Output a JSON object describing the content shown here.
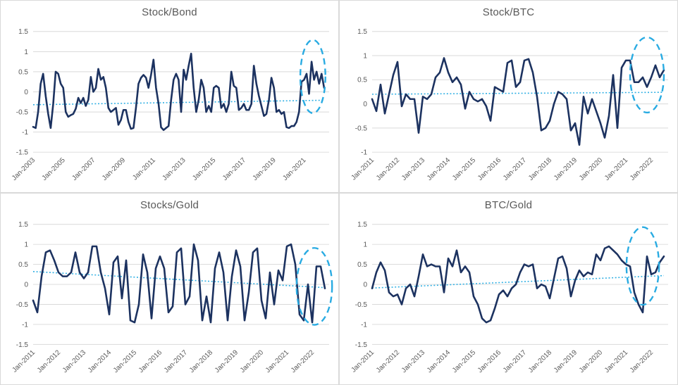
{
  "colors": {
    "background": "#FFFFFF",
    "cell_border": "#D9D9D9",
    "gridline": "#D9D9D9",
    "axis_text": "#595959",
    "title_text": "#595959",
    "series_line": "#1C3260",
    "trendline": "#2FAFE3",
    "highlight": "#29ABE2"
  },
  "chart_data": [
    {
      "type": "line",
      "title": "Stock/Bond",
      "x_step_months": 2,
      "xlim_months": [
        0,
        236
      ],
      "ylim": [
        -1.5,
        1.5
      ],
      "ytick_values": [
        1.5,
        1,
        0.5,
        0,
        -0.5,
        -1,
        -1.5
      ],
      "ytick_labels": [
        "1.5",
        "1",
        "0.5",
        "0",
        "-0.5",
        "-1",
        "-1.5"
      ],
      "xticks": {
        "positions": [
          0,
          24,
          48,
          72,
          96,
          120,
          144,
          168,
          192,
          216
        ],
        "labels": [
          "Jan-2003",
          "Jan-2005",
          "Jan-2007",
          "Jan-2009",
          "Jan-2011",
          "Jan-2013",
          "Jan-2015",
          "Jan-2017",
          "Jan-2019",
          "Jan-2021"
        ]
      },
      "series": [
        {
          "values": [
            -0.87,
            -0.9,
            -0.5,
            0.2,
            0.45,
            -0.1,
            -0.55,
            -0.9,
            -0.3,
            0.5,
            0.45,
            0.2,
            0.1,
            -0.5,
            -0.62,
            -0.58,
            -0.55,
            -0.42,
            -0.15,
            -0.28,
            -0.15,
            -0.35,
            -0.2,
            0.37,
            0.0,
            0.1,
            0.57,
            0.3,
            0.37,
            0.1,
            -0.4,
            -0.5,
            -0.45,
            -0.4,
            -0.82,
            -0.7,
            -0.45,
            -0.45,
            -0.75,
            -0.92,
            -0.9,
            -0.4,
            0.2,
            0.35,
            0.42,
            0.35,
            0.1,
            0.42,
            0.8,
            0.1,
            -0.3,
            -0.88,
            -0.95,
            -0.9,
            -0.85,
            -0.2,
            0.3,
            0.45,
            0.3,
            -0.5,
            0.55,
            0.3,
            0.65,
            0.95,
            0.1,
            -0.5,
            -0.2,
            0.3,
            0.1,
            -0.5,
            -0.35,
            -0.5,
            0.1,
            0.15,
            0.1,
            -0.4,
            -0.3,
            -0.5,
            -0.3,
            0.5,
            0.15,
            0.1,
            -0.45,
            -0.4,
            -0.3,
            -0.45,
            -0.45,
            -0.3,
            0.65,
            0.2,
            -0.1,
            -0.35,
            -0.6,
            -0.55,
            -0.2,
            0.35,
            0.1,
            -0.5,
            -0.45,
            -0.55,
            -0.5,
            -0.88,
            -0.9,
            -0.85,
            -0.85,
            -0.75,
            -0.5,
            0.25,
            0.3,
            0.45,
            -0.05,
            0.75,
            0.3,
            0.5,
            0.2,
            0.45,
            0.1
          ]
        }
      ],
      "trendline": {
        "start": -0.32,
        "end": -0.21
      },
      "highlight_ellipse": {
        "cx_month": 223,
        "cy": 0.38,
        "rx_months": 10,
        "ry": 0.91
      }
    },
    {
      "type": "line",
      "title": "Stock/BTC",
      "x_step_months": 2,
      "xlim_months": [
        0,
        140
      ],
      "ylim": [
        -1,
        1.5
      ],
      "ytick_values": [
        1.5,
        1,
        0.5,
        0,
        -0.5,
        -1
      ],
      "ytick_labels": [
        "1.5",
        "1",
        "0.5",
        "0",
        "-0.5",
        "-1"
      ],
      "xticks": {
        "positions": [
          0,
          12,
          24,
          36,
          48,
          60,
          72,
          84,
          96,
          108,
          120,
          132
        ],
        "labels": [
          "Jan-2011",
          "Jan-2012",
          "Jan-2013",
          "Jan-2014",
          "Jan-2015",
          "Jan-2016",
          "Jan-2017",
          "Jan-2018",
          "Jan-2019",
          "Jan-2020",
          "Jan-2021",
          "Jan-2022"
        ]
      },
      "series": [
        {
          "values": [
            0.1,
            -0.15,
            0.4,
            -0.2,
            0.2,
            0.6,
            0.87,
            -0.05,
            0.2,
            0.1,
            0.1,
            -0.6,
            0.15,
            0.1,
            0.2,
            0.55,
            0.65,
            0.95,
            0.65,
            0.45,
            0.55,
            0.4,
            -0.1,
            0.25,
            0.1,
            0.05,
            0.1,
            -0.05,
            -0.35,
            0.35,
            0.3,
            0.25,
            0.85,
            0.9,
            0.35,
            0.45,
            0.9,
            0.93,
            0.65,
            0.15,
            -0.55,
            -0.5,
            -0.35,
            0.0,
            0.25,
            0.2,
            0.1,
            -0.55,
            -0.4,
            -0.85,
            0.15,
            -0.2,
            0.1,
            -0.15,
            -0.4,
            -0.7,
            -0.25,
            0.6,
            -0.5,
            0.75,
            0.9,
            0.9,
            0.45,
            0.45,
            0.55,
            0.35,
            0.55,
            0.8,
            0.55,
            0.7
          ]
        }
      ],
      "trendline": {
        "start": 0.2,
        "end": 0.24
      },
      "highlight_ellipse": {
        "cx_month": 130,
        "cy": 0.6,
        "rx_months": 8,
        "ry": 0.78
      }
    },
    {
      "type": "line",
      "title": "Stocks/Gold",
      "x_step_months": 2,
      "xlim_months": [
        0,
        140
      ],
      "ylim": [
        -1.5,
        1.5
      ],
      "ytick_values": [
        1.5,
        1,
        0.5,
        0,
        -0.5,
        -1,
        -1.5
      ],
      "ytick_labels": [
        "1.5",
        "1",
        "0.5",
        "0",
        "-0.5",
        "-1",
        "-1.5"
      ],
      "xticks": {
        "positions": [
          0,
          12,
          24,
          36,
          48,
          60,
          72,
          84,
          96,
          108,
          120,
          132
        ],
        "labels": [
          "Jan-2011",
          "Jan-2012",
          "Jan-2013",
          "Jan-2014",
          "Jan-2015",
          "Jan-2016",
          "Jan-2017",
          "Jan-2018",
          "Jan-2019",
          "Jan-2020",
          "Jan-2021",
          "Jan-2022"
        ]
      },
      "series": [
        {
          "values": [
            -0.4,
            -0.7,
            0.2,
            0.8,
            0.85,
            0.6,
            0.3,
            0.2,
            0.2,
            0.3,
            0.8,
            0.3,
            0.15,
            0.3,
            0.95,
            0.95,
            0.3,
            -0.1,
            -0.75,
            0.55,
            0.7,
            -0.35,
            0.6,
            -0.9,
            -0.95,
            -0.5,
            0.75,
            0.3,
            -0.85,
            0.4,
            0.7,
            0.4,
            -0.7,
            -0.55,
            0.8,
            0.9,
            -0.5,
            -0.3,
            1.0,
            0.6,
            -0.9,
            -0.3,
            -0.95,
            0.4,
            0.8,
            0.3,
            -0.9,
            0.2,
            0.85,
            0.45,
            -0.9,
            -0.2,
            0.8,
            0.9,
            -0.4,
            -0.85,
            0.3,
            -0.5,
            0.35,
            0.1,
            0.95,
            1.0,
            0.5,
            -0.75,
            -0.9,
            0.0,
            -0.95,
            0.45,
            0.45,
            -0.1
          ]
        }
      ],
      "trendline": {
        "start": 0.32,
        "end": -0.08
      },
      "highlight_ellipse": {
        "cx_month": 133,
        "cy": -0.05,
        "rx_months": 8.4,
        "ry": 0.96
      }
    },
    {
      "type": "line",
      "title": "BTC/Gold",
      "x_step_months": 2,
      "xlim_months": [
        0,
        140
      ],
      "ylim": [
        -1.5,
        1.5
      ],
      "ytick_values": [
        1.5,
        1,
        0.5,
        0,
        -0.5,
        -1,
        -1.5
      ],
      "ytick_labels": [
        "1.5",
        "1",
        "0.5",
        "0",
        "-0.5",
        "-1",
        "-1.5"
      ],
      "xticks": {
        "positions": [
          0,
          12,
          24,
          36,
          48,
          60,
          72,
          84,
          96,
          108,
          120,
          132
        ],
        "labels": [
          "Jan-2011",
          "Jan-2012",
          "Jan-2013",
          "Jan-2014",
          "Jan-2015",
          "Jan-2016",
          "Jan-2017",
          "Jan-2018",
          "Jan-2019",
          "Jan-2020",
          "Jan-2021",
          "Jan-2022"
        ]
      },
      "series": [
        {
          "values": [
            -0.1,
            0.3,
            0.55,
            0.35,
            -0.2,
            -0.3,
            -0.25,
            -0.5,
            -0.1,
            0.0,
            -0.3,
            0.2,
            0.75,
            0.45,
            0.5,
            0.45,
            0.45,
            -0.2,
            0.65,
            0.45,
            0.85,
            0.3,
            0.45,
            0.3,
            -0.3,
            -0.5,
            -0.85,
            -0.95,
            -0.9,
            -0.6,
            -0.25,
            -0.15,
            -0.3,
            -0.1,
            0.0,
            0.3,
            0.5,
            0.45,
            0.5,
            -0.1,
            0.0,
            -0.05,
            -0.35,
            0.15,
            0.65,
            0.7,
            0.4,
            -0.3,
            0.1,
            0.35,
            0.2,
            0.3,
            0.25,
            0.75,
            0.6,
            0.9,
            0.95,
            0.85,
            0.75,
            0.6,
            0.5,
            0.45,
            -0.2,
            -0.5,
            -0.7,
            0.7,
            0.25,
            0.3,
            0.55,
            0.7
          ]
        }
      ],
      "trendline": {
        "start": -0.09,
        "end": 0.22
      },
      "highlight_ellipse": {
        "cx_month": 128,
        "cy": 0.46,
        "rx_months": 7.7,
        "ry": 0.97
      }
    }
  ]
}
